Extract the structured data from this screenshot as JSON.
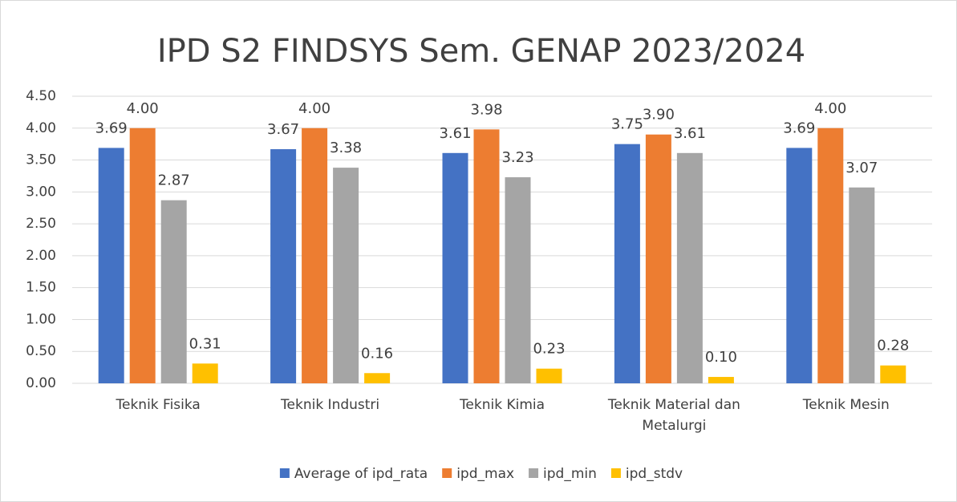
{
  "chart_data": {
    "type": "bar",
    "title": "IPD S2 FINDSYS Sem. GENAP 2023/2024",
    "categories": [
      "Teknik Fisika",
      "Teknik Industri",
      "Teknik Kimia",
      "Teknik Material dan Metalurgi",
      "Teknik Mesin"
    ],
    "series": [
      {
        "name": "Average of ipd_rata",
        "color": "#4472c4",
        "values": [
          3.69,
          3.67,
          3.61,
          3.75,
          3.69
        ],
        "value_labels": [
          "3.69",
          "3.67",
          "3.61",
          "3.75",
          "3.69"
        ]
      },
      {
        "name": "ipd_max",
        "color": "#ed7d31",
        "values": [
          4.0,
          4.0,
          3.98,
          3.9,
          4.0
        ],
        "value_labels": [
          "4.00",
          "4.00",
          "3.98",
          "3.90",
          "4.00"
        ]
      },
      {
        "name": "ipd_min",
        "color": "#a5a5a5",
        "values": [
          2.87,
          3.38,
          3.23,
          3.61,
          3.07
        ],
        "value_labels": [
          "2.87",
          "3.38",
          "3.23",
          "3.61",
          "3.07"
        ]
      },
      {
        "name": "ipd_stdv",
        "color": "#ffc000",
        "values": [
          0.31,
          0.16,
          0.23,
          0.1,
          0.28
        ],
        "value_labels": [
          "0.31",
          "0.16",
          "0.23",
          "0.10",
          "0.28"
        ]
      }
    ],
    "ylim": [
      0,
      4.5
    ],
    "yticks": [
      {
        "value": 0,
        "label": "0.00"
      },
      {
        "value": 0.5,
        "label": "0.50"
      },
      {
        "value": 1,
        "label": "1.00"
      },
      {
        "value": 1.5,
        "label": "1.50"
      },
      {
        "value": 2,
        "label": "2.00"
      },
      {
        "value": 2.5,
        "label": "2.50"
      },
      {
        "value": 3,
        "label": "3.00"
      },
      {
        "value": 3.5,
        "label": "3.50"
      },
      {
        "value": 4,
        "label": "4.00"
      },
      {
        "value": 4.5,
        "label": "4.50"
      }
    ],
    "grid": true,
    "legend": "bottom"
  }
}
